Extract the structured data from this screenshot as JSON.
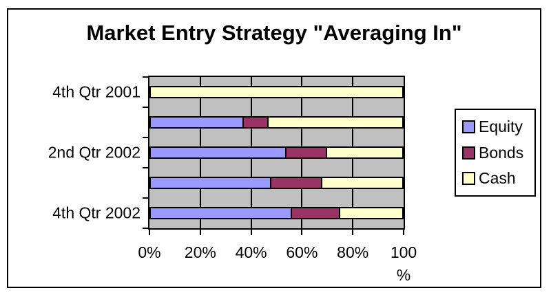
{
  "chart_data": {
    "type": "bar",
    "orientation": "horizontal",
    "stacked": true,
    "title": "Market Entry Strategy \"Averaging In\"",
    "categories": [
      "4th Qtr 2001",
      "",
      "2nd Qtr 2002",
      "",
      "4th Qtr 2002"
    ],
    "series": [
      {
        "name": "Equity",
        "color": "#9999FF",
        "values": [
          0,
          37,
          54,
          48,
          56
        ]
      },
      {
        "name": "Bonds",
        "color": "#993366",
        "values": [
          0,
          10,
          16,
          20,
          19
        ]
      },
      {
        "name": "Cash",
        "color": "#FFFFCC",
        "values": [
          100,
          53,
          30,
          32,
          25
        ]
      }
    ],
    "value_unit": "%",
    "xlim": [
      0,
      100
    ],
    "x_ticks": [
      "0%",
      "20%",
      "40%",
      "60%",
      "80%",
      "100"
    ],
    "x_tick_wrap": "%",
    "grid_interval": 20,
    "gridlines": true,
    "legend_position": "right",
    "plot_bg": "#C0C0C0",
    "grid_color": "#000000",
    "axis_color": "#000000",
    "segment_border_color": "#000000",
    "legend": {
      "bg": "#FFFFFF",
      "border_color": "#000000"
    },
    "frame": {
      "bg": "#FFFFFF",
      "border_color": "#000000"
    }
  }
}
